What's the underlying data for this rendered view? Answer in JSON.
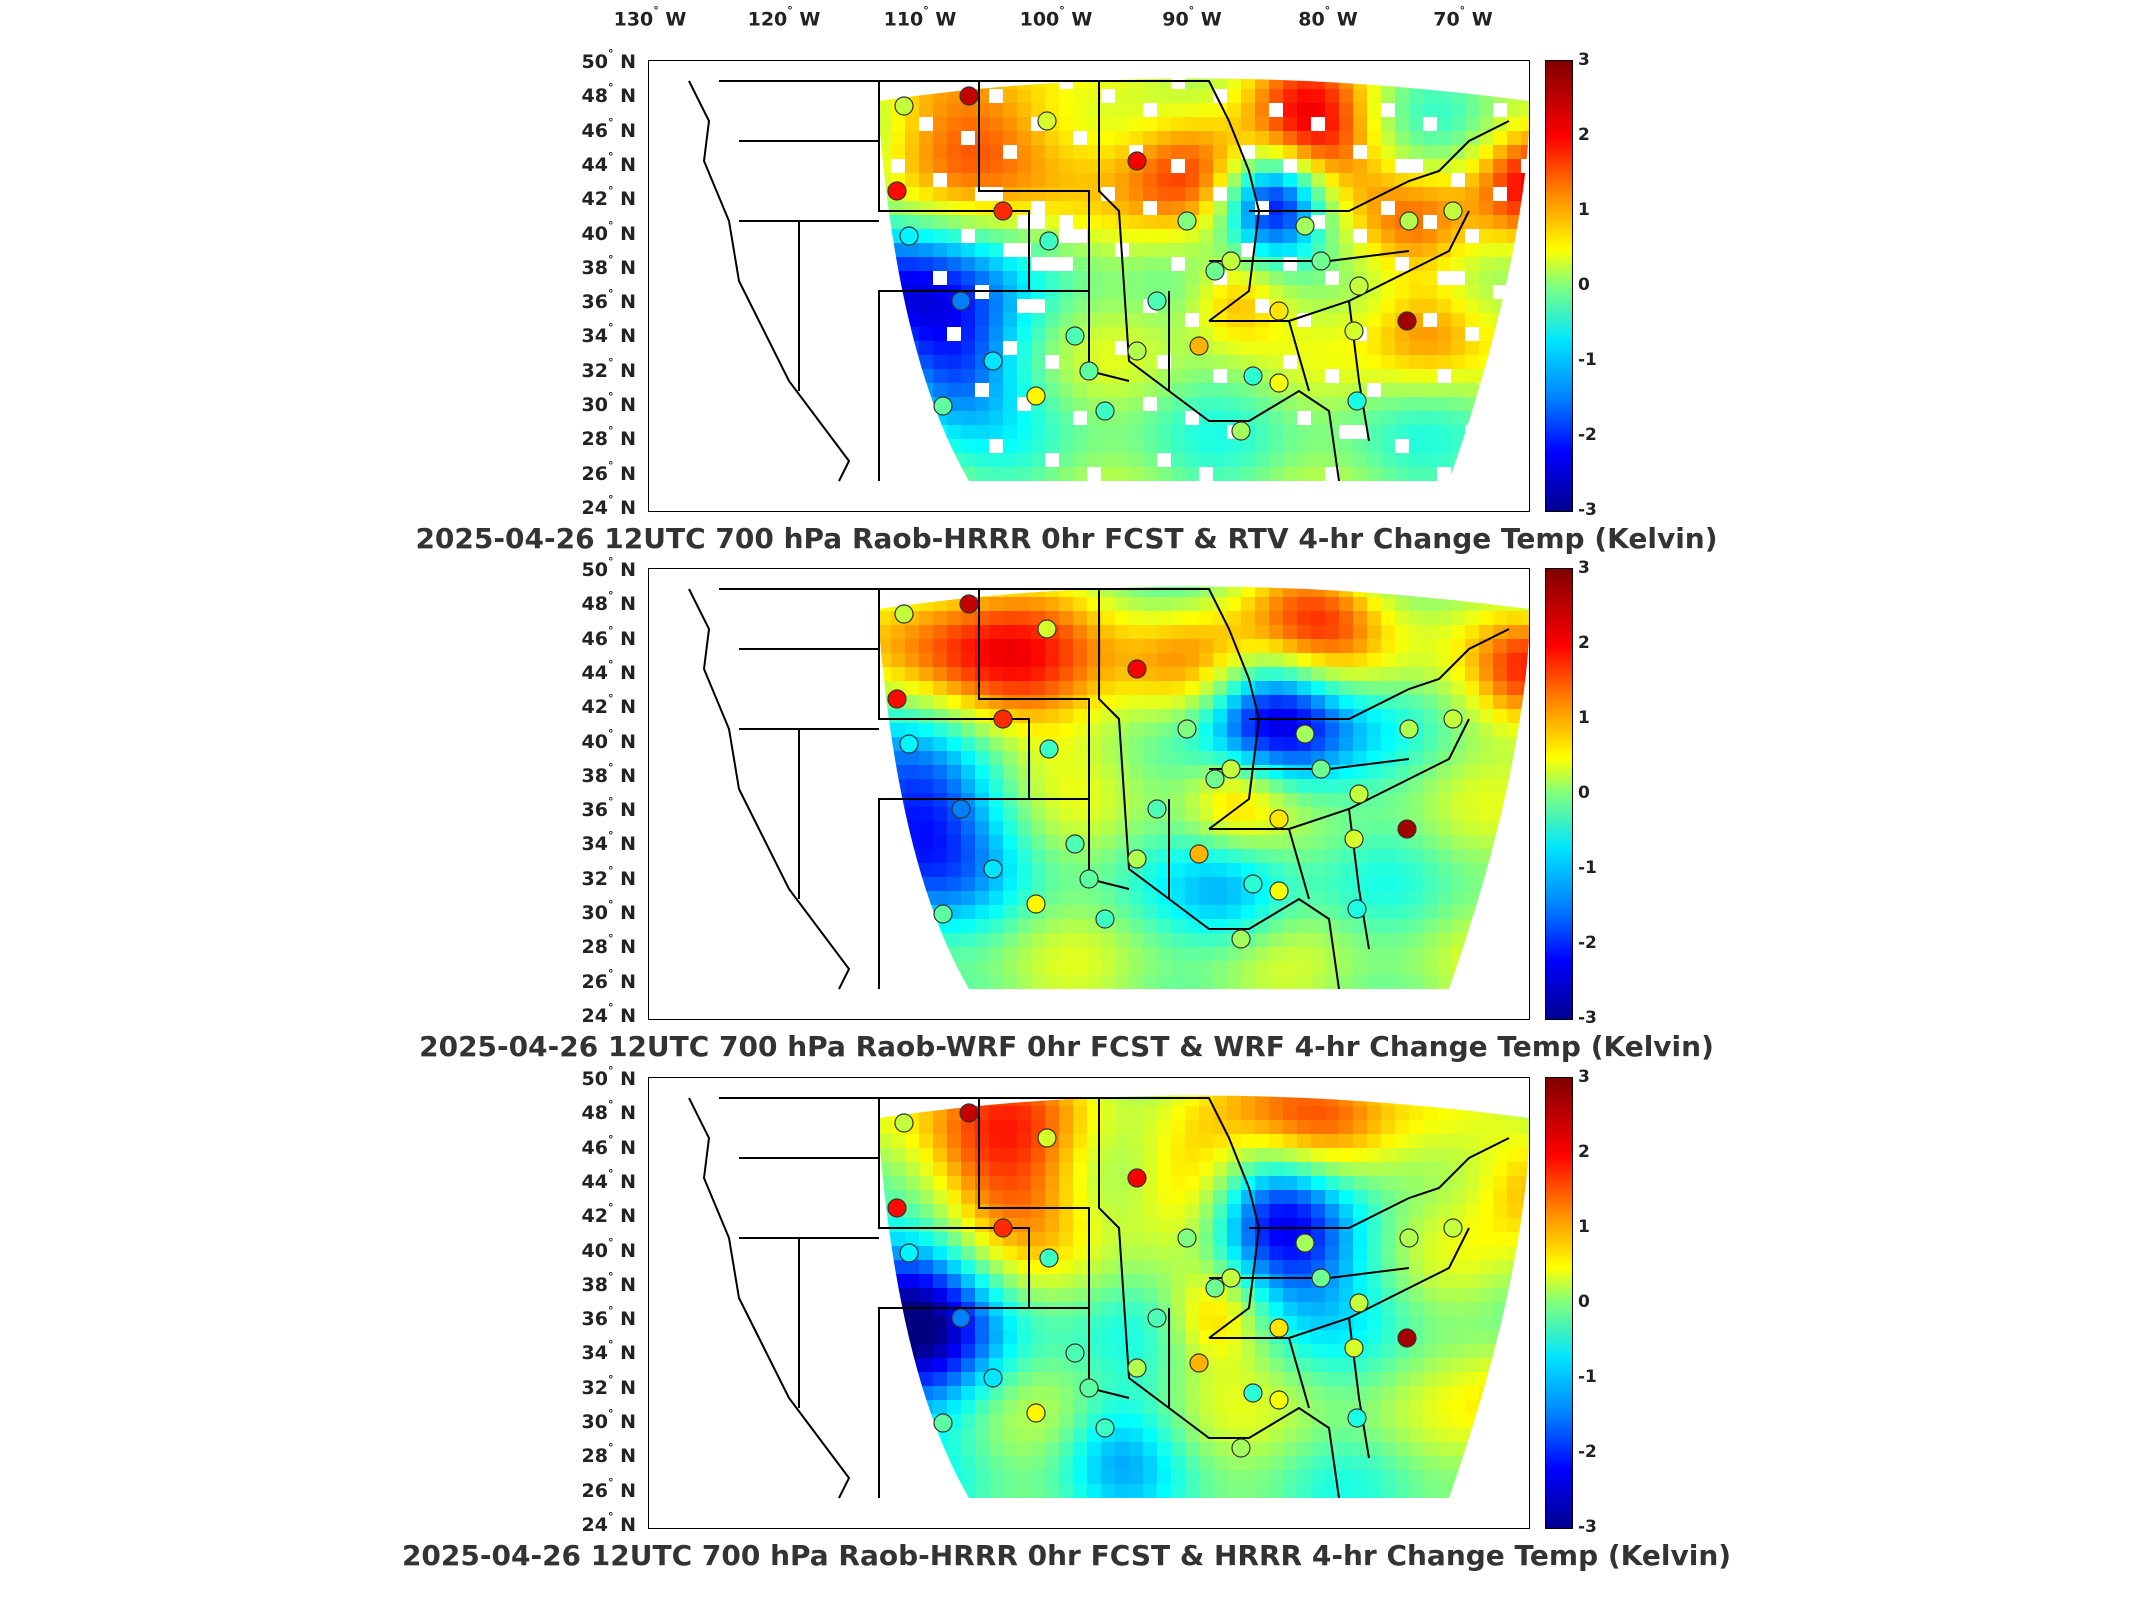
{
  "longitude_labels": [
    "130",
    "120",
    "110",
    "100",
    "90",
    "80",
    "70"
  ],
  "lon_suffix": "W",
  "latitude_labels": [
    "50",
    "48",
    "46",
    "44",
    "42",
    "40",
    "38",
    "36",
    "34",
    "32",
    "30",
    "28",
    "26",
    "24"
  ],
  "lat_suffix": "N",
  "colorbar": {
    "ticks": [
      "3",
      "2",
      "1",
      "0",
      "-1",
      "-2",
      "-3"
    ],
    "range": [
      -3,
      3
    ],
    "colormap": "jet",
    "colors": [
      "#00008f",
      "#0000ff",
      "#0080ff",
      "#00e5ff",
      "#7fff7f",
      "#ffff00",
      "#ff8c00",
      "#ff0000",
      "#800000"
    ]
  },
  "panels": [
    {
      "title": "2025-04-26 12UTC 700 hPa Raob-HRRR 0hr FCST & RTV 4-hr Change Temp (Kelvin)"
    },
    {
      "title": "2025-04-26 12UTC 700 hPa Raob-WRF 0hr FCST & WRF 4-hr Change Temp (Kelvin)"
    },
    {
      "title": "2025-04-26 12UTC 700 hPa Raob-HRRR 0hr FCST & HRRR 4-hr Change Temp (Kelvin)"
    }
  ]
}
